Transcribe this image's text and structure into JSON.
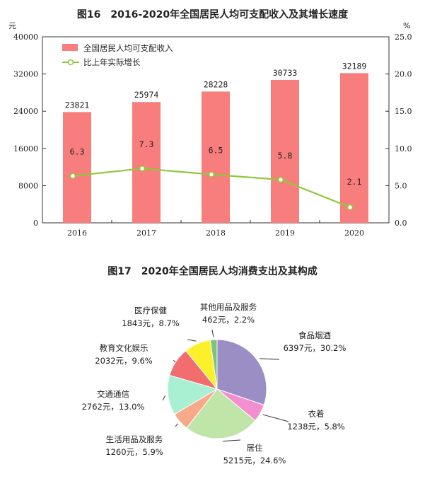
{
  "chart_data": [
    {
      "type": "bar",
      "title": "图16　2016-2020年全国居民人均可支配收入及其增长速度",
      "left_unit": "元",
      "right_unit": "%",
      "categories": [
        "2016",
        "2017",
        "2018",
        "2019",
        "2020"
      ],
      "left_ticks": [
        "0",
        "8000",
        "16000",
        "24000",
        "32000",
        "40000"
      ],
      "right_ticks": [
        "0.0",
        "5.0",
        "10.0",
        "15.0",
        "20.0",
        "25.0"
      ],
      "ylim_left": [
        0,
        40000
      ],
      "ylim_right": [
        0,
        25
      ],
      "legend_position": "top-left",
      "grid": false,
      "series": [
        {
          "name": "全国居民人均可支配收入",
          "type": "bar",
          "axis": "left",
          "color": "#f87d7d",
          "values": [
            23821,
            25974,
            28228,
            30733,
            32189
          ],
          "labels": [
            "23821",
            "25974",
            "28228",
            "30733",
            "32189"
          ]
        },
        {
          "name": "比上年实际增长",
          "type": "line",
          "axis": "right",
          "color": "#8fc93a",
          "values": [
            6.3,
            7.3,
            6.5,
            5.8,
            2.1
          ],
          "labels": [
            "6.3",
            "7.3",
            "6.5",
            "5.8",
            "2.1"
          ]
        }
      ]
    },
    {
      "type": "pie",
      "title": "图17　2020年全国居民人均消费支出及其构成",
      "slices": [
        {
          "category": "食品烟酒",
          "amount": "6397元，30.2%",
          "value": 30.2,
          "color": "#9b8ec4"
        },
        {
          "category": "衣着",
          "amount": "1238元，5.8%",
          "value": 5.8,
          "color": "#f48fcf"
        },
        {
          "category": "居住",
          "amount": "5215元，24.6%",
          "value": 24.6,
          "color": "#bfe6a8"
        },
        {
          "category": "生活用品及服务",
          "amount": "1260元，5.9%",
          "value": 5.9,
          "color": "#f7a98a"
        },
        {
          "category": "交通通信",
          "amount": "2762元，13.0%",
          "value": 13.0,
          "color": "#a9f0d2"
        },
        {
          "category": "教育文化娱乐",
          "amount": "2032元，9.6%",
          "value": 9.6,
          "color": "#f26d6d"
        },
        {
          "category": "医疗保健",
          "amount": "1843元，8.7%",
          "value": 8.7,
          "color": "#fbf02a"
        },
        {
          "category": "其他用品及服务",
          "amount": "462元，2.2%",
          "value": 2.2,
          "color": "#7cc47c"
        }
      ]
    }
  ]
}
